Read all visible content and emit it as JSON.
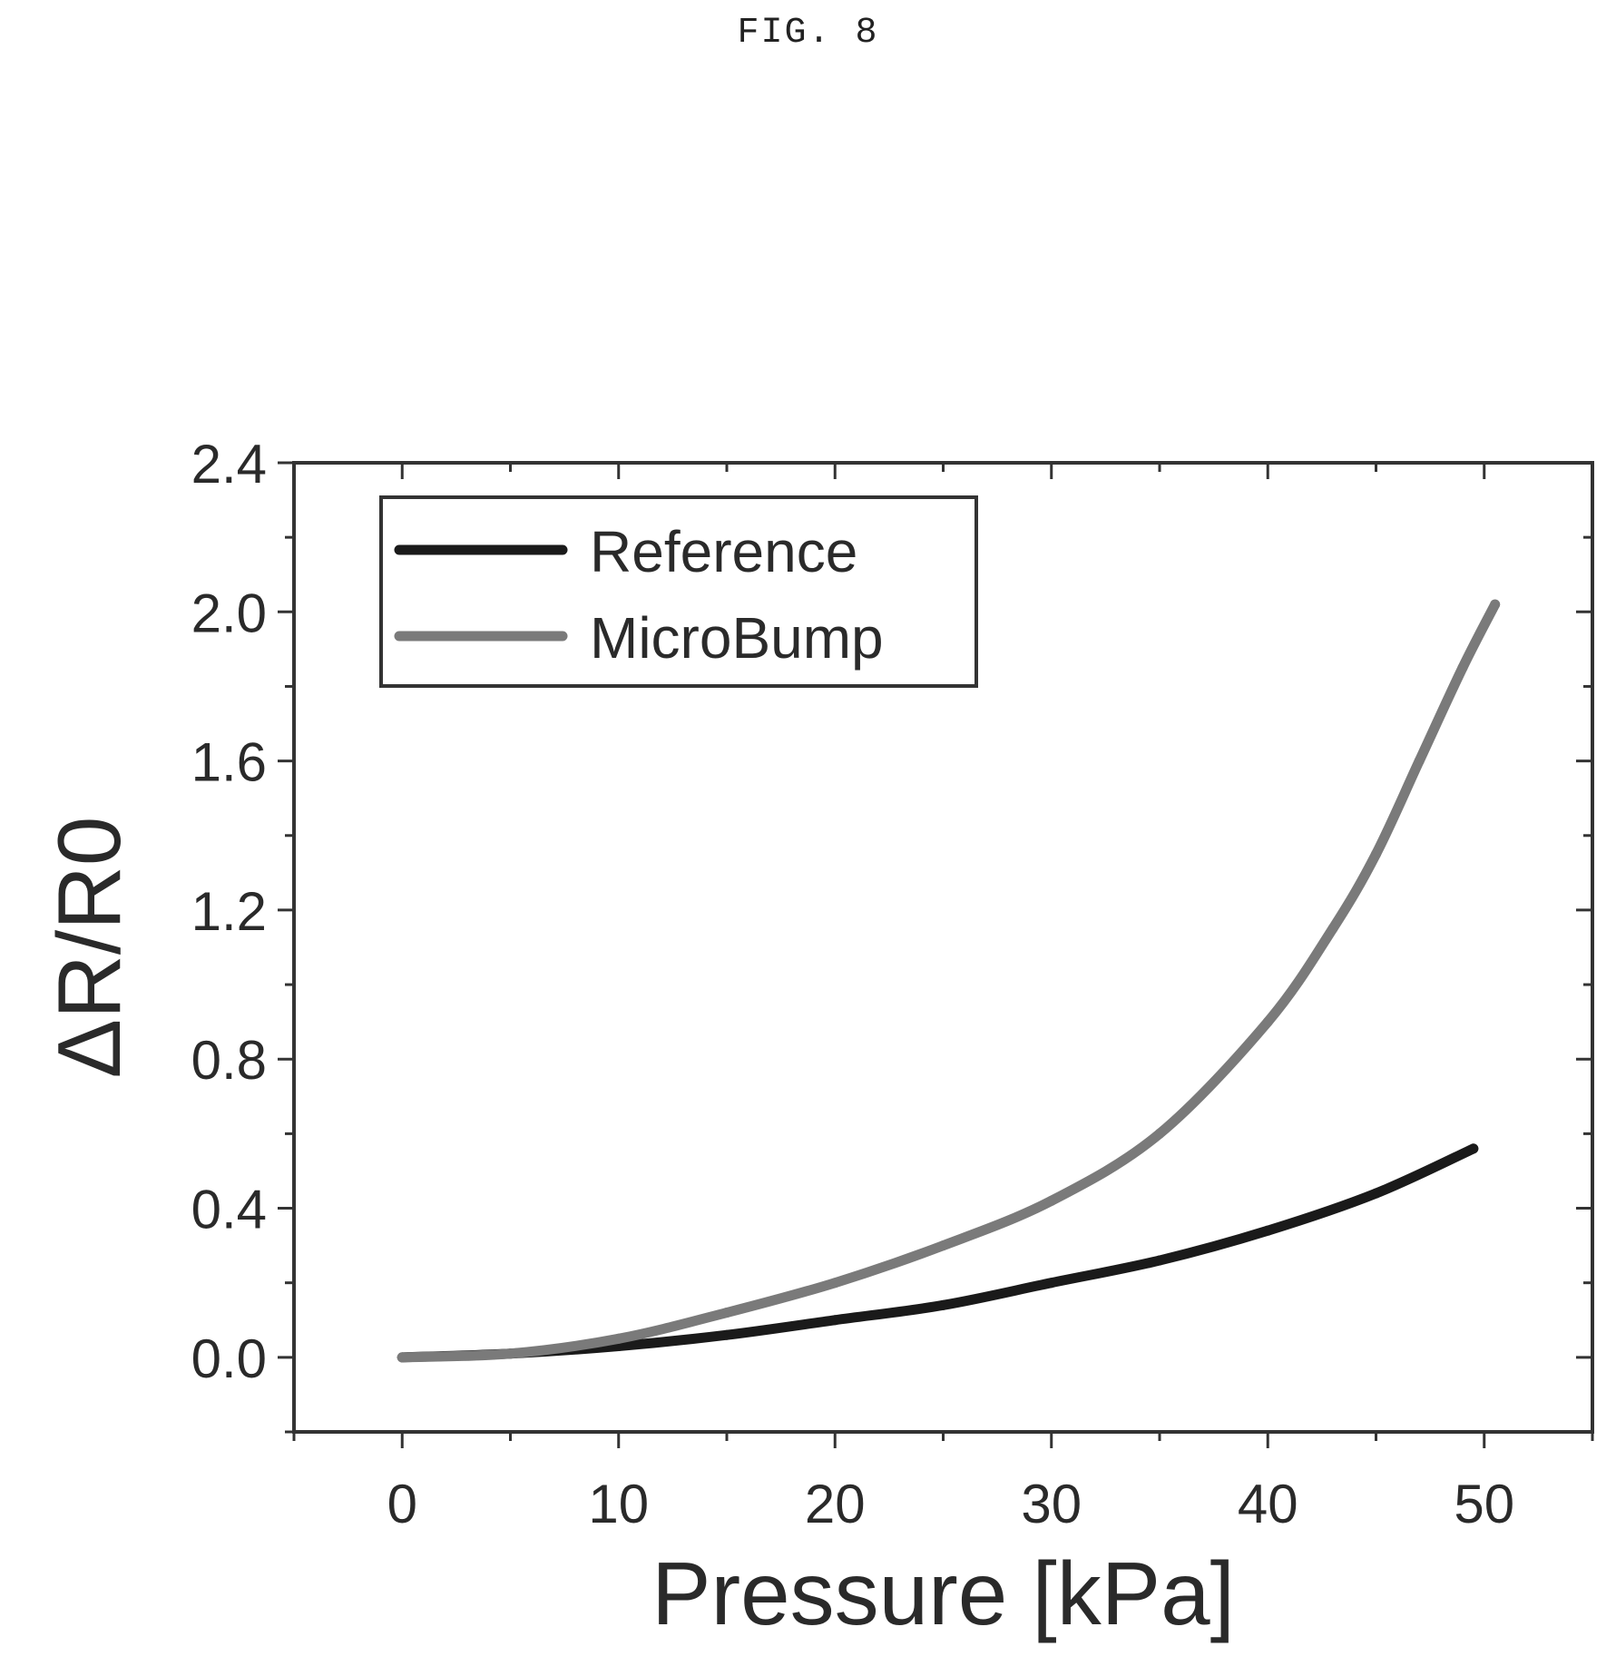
{
  "figure_label": "FIG. 8",
  "colors": {
    "reference": "#1a1a1a",
    "microbump": "#7a7a7a",
    "axis": "#333333"
  },
  "chart_data": {
    "type": "line",
    "title": "",
    "xlabel": "Pressure [kPa]",
    "ylabel": "ΔR/R0",
    "xlim": [
      -5,
      55
    ],
    "ylim": [
      -0.2,
      2.4
    ],
    "xticks": [
      0,
      10,
      20,
      30,
      40,
      50
    ],
    "yticks": [
      0.0,
      0.4,
      0.8,
      1.2,
      1.6,
      2.0,
      2.4
    ],
    "xtick_labels": [
      "0",
      "10",
      "20",
      "30",
      "40",
      "50"
    ],
    "ytick_labels": [
      "0.0",
      "0.4",
      "0.8",
      "1.2",
      "1.6",
      "2.0",
      "2.4"
    ],
    "grid": false,
    "legend_position": "top-left",
    "series": [
      {
        "name": "Reference",
        "color_key": "reference",
        "x": [
          0,
          5,
          10,
          15,
          20,
          25,
          30,
          35,
          40,
          45,
          49.5
        ],
        "y": [
          0.0,
          0.01,
          0.03,
          0.06,
          0.1,
          0.14,
          0.2,
          0.26,
          0.34,
          0.44,
          0.56
        ]
      },
      {
        "name": "MicroBump",
        "color_key": "microbump",
        "x": [
          0,
          5,
          10,
          15,
          20,
          25,
          30,
          35,
          40,
          43,
          45,
          47,
          49,
          50.5
        ],
        "y": [
          0.0,
          0.01,
          0.05,
          0.12,
          0.2,
          0.3,
          0.42,
          0.6,
          0.9,
          1.15,
          1.35,
          1.6,
          1.85,
          2.02
        ]
      }
    ]
  }
}
